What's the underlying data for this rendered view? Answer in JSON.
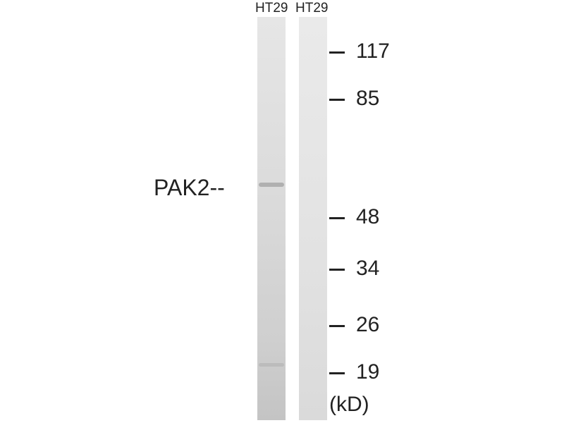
{
  "lanes": [
    {
      "label": "HT29"
    },
    {
      "label": "HT29"
    }
  ],
  "protein_label": "PAK2--",
  "markers": [
    "117",
    "85",
    "48",
    "34",
    "26",
    "19"
  ],
  "unit": "(kD)",
  "band_color": "#a8a8a8"
}
